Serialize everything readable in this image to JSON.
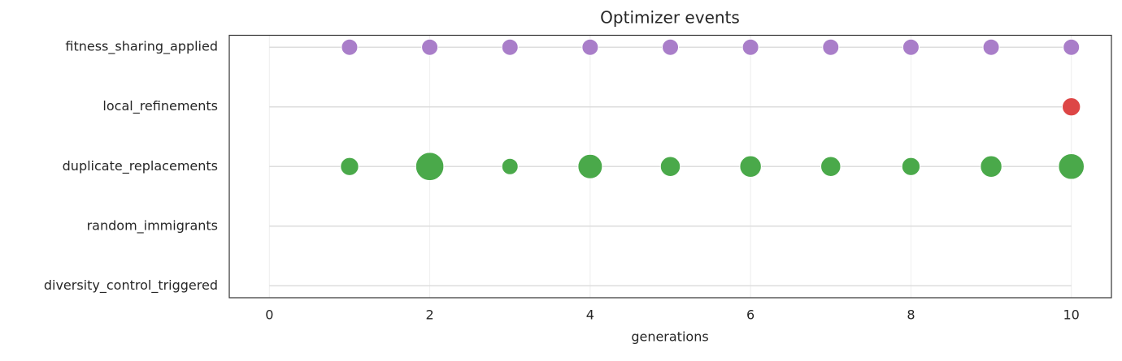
{
  "chart_data": {
    "type": "scatter",
    "title": "Optimizer events",
    "xlabel": "generations",
    "xlim": [
      -0.5,
      10.5
    ],
    "xticks": [
      0,
      2,
      4,
      6,
      8,
      10
    ],
    "grid": true,
    "series": [
      {
        "name": "fitness_sharing_applied",
        "color": "#a97ec9",
        "x": [
          1,
          2,
          3,
          4,
          5,
          6,
          7,
          8,
          9,
          10
        ],
        "sizes": [
          4,
          4,
          4,
          4,
          4,
          4,
          4,
          4,
          4,
          4
        ]
      },
      {
        "name": "local_refinements",
        "color": "#dd4646",
        "x": [
          10
        ],
        "sizes": [
          5
        ]
      },
      {
        "name": "duplicate_replacements",
        "color": "#4aa94a",
        "x": [
          1,
          2,
          3,
          4,
          5,
          6,
          7,
          8,
          9,
          10
        ],
        "sizes": [
          5,
          12,
          4,
          9,
          6,
          7,
          6,
          5,
          7,
          10
        ]
      },
      {
        "name": "random_immigrants",
        "color": "#4aa94a",
        "x": [],
        "sizes": []
      },
      {
        "name": "diversity_control_triggered",
        "color": "#4aa94a",
        "x": [],
        "sizes": []
      }
    ]
  }
}
